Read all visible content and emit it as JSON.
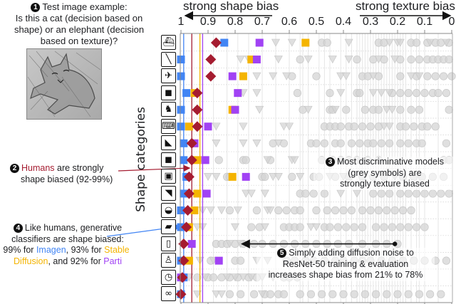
{
  "annotations": {
    "a1": {
      "num": "1",
      "lines": [
        "Test image example:",
        "Is this a cat (decision based on",
        "shape) or an elephant (decision",
        "based on texture)?"
      ]
    },
    "a2": {
      "num": "2",
      "humans": "Humans",
      "rest1": " are strongly",
      "line2": "shape biased (92-99%)"
    },
    "a3": {
      "num": "3",
      "lines": [
        "Most discriminative models",
        "(grey symbols) are",
        "strongly texture biased"
      ]
    },
    "a4": {
      "num": "4",
      "line1": "Like humans, generative",
      "line2": "classifiers are shape biased:",
      "p1": "99% for ",
      "imagen": "Imagen",
      "p2": ", 93% for ",
      "stable": "Stable",
      "diffusion": "Diffusion",
      "p3": ", and 92% for ",
      "parti": "Parti"
    },
    "a5": {
      "num": "5",
      "lines": [
        "Simply adding diffusion noise to",
        "ResNet-50 training & evaluation",
        "increases shape bias from 21% to 78%"
      ]
    }
  },
  "test_image": {
    "description": "cat-shaped image with elephant texture"
  },
  "colors": {
    "imagen": "#4285f4",
    "stable_diffusion": "#f4b400",
    "parti": "#a142f4",
    "humans": "#a51c30",
    "grey_models": "#d4d4d4"
  },
  "chart_data": {
    "type": "scatter",
    "title": "",
    "top_labels": {
      "left": "strong shape bias",
      "right": "strong texture bias"
    },
    "xlabel": "",
    "ylabel": "Shape categories",
    "xlim": [
      1,
      0
    ],
    "xticks": [
      1,
      0.9,
      0.8,
      0.7,
      0.6,
      0.5,
      0.4,
      0.3,
      0.2,
      0.1,
      0
    ],
    "xtick_labels": [
      "1",
      "0.9",
      "0.8",
      "0.7",
      "0.6",
      "0.5",
      "0.4",
      "0.3",
      "0.2",
      "0.1",
      "0"
    ],
    "categories": [
      "boat",
      "knife",
      "airplane",
      "bear",
      "dog",
      "keyboard",
      "cat",
      "elephant",
      "oven",
      "bird",
      "car",
      "truck",
      "bottle",
      "chair",
      "clock",
      "bicycle"
    ],
    "category_icons": [
      "boat-icon",
      "knife-icon",
      "airplane-icon",
      "bear-icon",
      "dog-icon",
      "keyboard-icon",
      "cat-icon",
      "elephant-icon",
      "oven-icon",
      "bird-icon",
      "car-icon",
      "truck-icon",
      "bottle-icon",
      "chair-icon",
      "clock-icon",
      "bicycle-icon"
    ],
    "series": [
      {
        "name": "Imagen",
        "color_key": "imagen",
        "marker": "square",
        "values": [
          0.84,
          1.0,
          1.0,
          0.98,
          1.0,
          1.0,
          0.99,
          0.99,
          0.98,
          0.99,
          1.0,
          1.0,
          null,
          1.0,
          0.99,
          1.0
        ],
        "mean": 0.99
      },
      {
        "name": "Stable Diffusion",
        "color_key": "stable_diffusion",
        "marker": "square",
        "values": [
          0.54,
          0.74,
          0.77,
          0.95,
          0.81,
          0.97,
          0.95,
          0.94,
          0.81,
          0.94,
          0.95,
          0.97,
          null,
          0.97,
          null,
          null
        ],
        "mean": 0.93
      },
      {
        "name": "Parti",
        "color_key": "parti",
        "marker": "square",
        "values": [
          0.71,
          0.72,
          0.81,
          0.79,
          0.8,
          0.9,
          0.95,
          0.91,
          0.76,
          0.905,
          null,
          null,
          0.96,
          0.86,
          1.0,
          null
        ],
        "mean": 0.92
      },
      {
        "name": "Humans",
        "color_key": "humans",
        "marker": "diamond",
        "values": [
          0.87,
          0.89,
          0.89,
          0.94,
          0.94,
          0.94,
          0.96,
          0.96,
          0.97,
          0.97,
          0.975,
          0.98,
          0.99,
          0.99,
          0.995,
          1.0
        ],
        "mean": 0.96
      }
    ],
    "grey_models": {
      "circles": [
        [
          0.48,
          0.46,
          0.27,
          0.25,
          0.15,
          0.13,
          0.09,
          0.06,
          0.04,
          0.01
        ],
        [
          0.56,
          0.35,
          0.29,
          0.25,
          0.19,
          0.15,
          0.12,
          0.09,
          0.07,
          0.05,
          0.03,
          0.01
        ],
        [
          0.59,
          0.5,
          0.33,
          0.31,
          0.27,
          0.19,
          0.13,
          0.09,
          0.06,
          0.03,
          0.0
        ],
        [
          0.57,
          0.45,
          0.35,
          0.34,
          0.22,
          0.19,
          0.16,
          0.13,
          0.1,
          0.07,
          0.05,
          0.02
        ],
        [
          0.55,
          0.45,
          0.44,
          0.39,
          0.32,
          0.29,
          0.27,
          0.19,
          0.15,
          0.12,
          0.01
        ],
        [
          0.47,
          0.45,
          0.43,
          0.41,
          0.38,
          0.36,
          0.33,
          0.3,
          0.27,
          0.19,
          0.17,
          0.14,
          0.11,
          0.09,
          0.06
        ],
        [
          0.66,
          0.62,
          0.52,
          0.5,
          0.47,
          0.43,
          0.41,
          0.37,
          0.34,
          0.31,
          0.29,
          0.26,
          0.23,
          0.19,
          0.16,
          0.13,
          0.11,
          0.02
        ],
        [
          0.86,
          0.77,
          0.76,
          0.67,
          0.48,
          0.44,
          0.41,
          0.38,
          0.35,
          0.31,
          0.27,
          0.03,
          0.01
        ],
        [
          0.83,
          0.82,
          0.7,
          0.69,
          0.59,
          0.51,
          0.49,
          0.43,
          0.38,
          0.33,
          0.29,
          0.25,
          0.18,
          0.14,
          0.11,
          0.07,
          0.03
        ],
        [
          0.56,
          0.54,
          0.51,
          0.47,
          0.29,
          0.26,
          0.23,
          0.19,
          0.16,
          0.13,
          0.1,
          0.07,
          0.04,
          0.01
        ],
        [
          0.82,
          0.72,
          0.64,
          0.61,
          0.58,
          0.56,
          0.5,
          0.46,
          0.43,
          0.4,
          0.37,
          0.33,
          0.3,
          0.27,
          0.24,
          0.21,
          0.18,
          0.15
        ],
        [
          0.74,
          0.71,
          0.62,
          0.6,
          0.58,
          0.56,
          0.47,
          0.45,
          0.42,
          0.39,
          0.36,
          0.33,
          0.28,
          0.25,
          0.22,
          0.19,
          0.16,
          0.13,
          0.1
        ],
        [
          0.87,
          0.85,
          0.83,
          0.8,
          0.77,
          0.73,
          0.7,
          0.66,
          0.62,
          0.58,
          0.54,
          0.5,
          0.46,
          0.42,
          0.38,
          0.33,
          0.28,
          0.24,
          0.2
        ],
        [
          0.89,
          0.8,
          0.78,
          0.61,
          0.58,
          0.54,
          0.51,
          0.47,
          0.43,
          0.4,
          0.36,
          0.33,
          0.3,
          0.26,
          0.22,
          0.18,
          0.14,
          0.1,
          0.06,
          0.02
        ],
        [
          0.94,
          0.9,
          0.88,
          0.85,
          0.82,
          0.79,
          0.75,
          0.72,
          0.62,
          0.6,
          0.57
        ],
        [
          0.82,
          0.78,
          0.73,
          0.69,
          0.67,
          0.64,
          0.62,
          0.56,
          0.52,
          0.48,
          0.44,
          0.4,
          0.36,
          0.32,
          0.28,
          0.24,
          0.2,
          0.16,
          0.12,
          0.08,
          0.04
        ]
      ],
      "triangles": [
        [
          0.65,
          0.59,
          0.38,
          0.23,
          0.2,
          0.19,
          0.08,
          0.02
        ],
        [
          0.78,
          0.75,
          0.64,
          0.53,
          0.44,
          0.38,
          0.27,
          0.21
        ],
        [
          0.72,
          0.66,
          0.61,
          0.41,
          0.39,
          0.29,
          0.15,
          0.12
        ],
        [
          0.77,
          0.72,
          0.41,
          0.29,
          0.26,
          0.23
        ],
        [
          0.71,
          0.53,
          0.43,
          0.24,
          0.22
        ],
        [
          0.87,
          0.77,
          0.62,
          0.6,
          0.25,
          0.23
        ],
        [
          0.87,
          0.77,
          0.72,
          0.64
        ],
        [
          0.94,
          0.92,
          0.68,
          0.59,
          0.58
        ],
        [
          0.9,
          0.87,
          0.66,
          0.64,
          0.56,
          0.45,
          0.4,
          0.21
        ],
        [
          0.76,
          0.74,
          0.69,
          0.41,
          0.35
        ],
        [
          0.92,
          0.89,
          0.85,
          0.79,
          0.68,
          0.67
        ],
        [
          0.94,
          0.92,
          0.8,
          0.69,
          0.52,
          0.5
        ],
        [
          0.96,
          0.82,
          0.78
        ],
        [
          0.93,
          0.88,
          0.72,
          0.68
        ],
        [
          0.97,
          0.91,
          0.83,
          0.8,
          0.77,
          0.74,
          0.7,
          0.66
        ],
        [
          0.94,
          0.87,
          0.85,
          0.7
        ]
      ],
      "means": [
        0.88,
        0.83,
        0.79,
        0.75,
        0.7,
        0.65,
        0.6,
        0.56,
        0.55,
        0.53,
        0.49,
        0.47,
        0.45,
        0.41,
        0.39,
        0.37,
        0.35,
        0.34,
        0.33,
        0.32,
        0.31,
        0.3,
        0.29,
        0.28,
        0.27,
        0.26,
        0.25,
        0.24,
        0.23,
        0.22,
        0.21,
        0.2,
        0.19,
        0.18,
        0.17,
        0.15,
        0.13,
        0.12,
        0.1,
        0.05
      ]
    },
    "resnet_diffusion_arrow": {
      "from": 0.21,
      "to": 0.78,
      "category": "bottle"
    },
    "grid": true,
    "legend": "none"
  }
}
